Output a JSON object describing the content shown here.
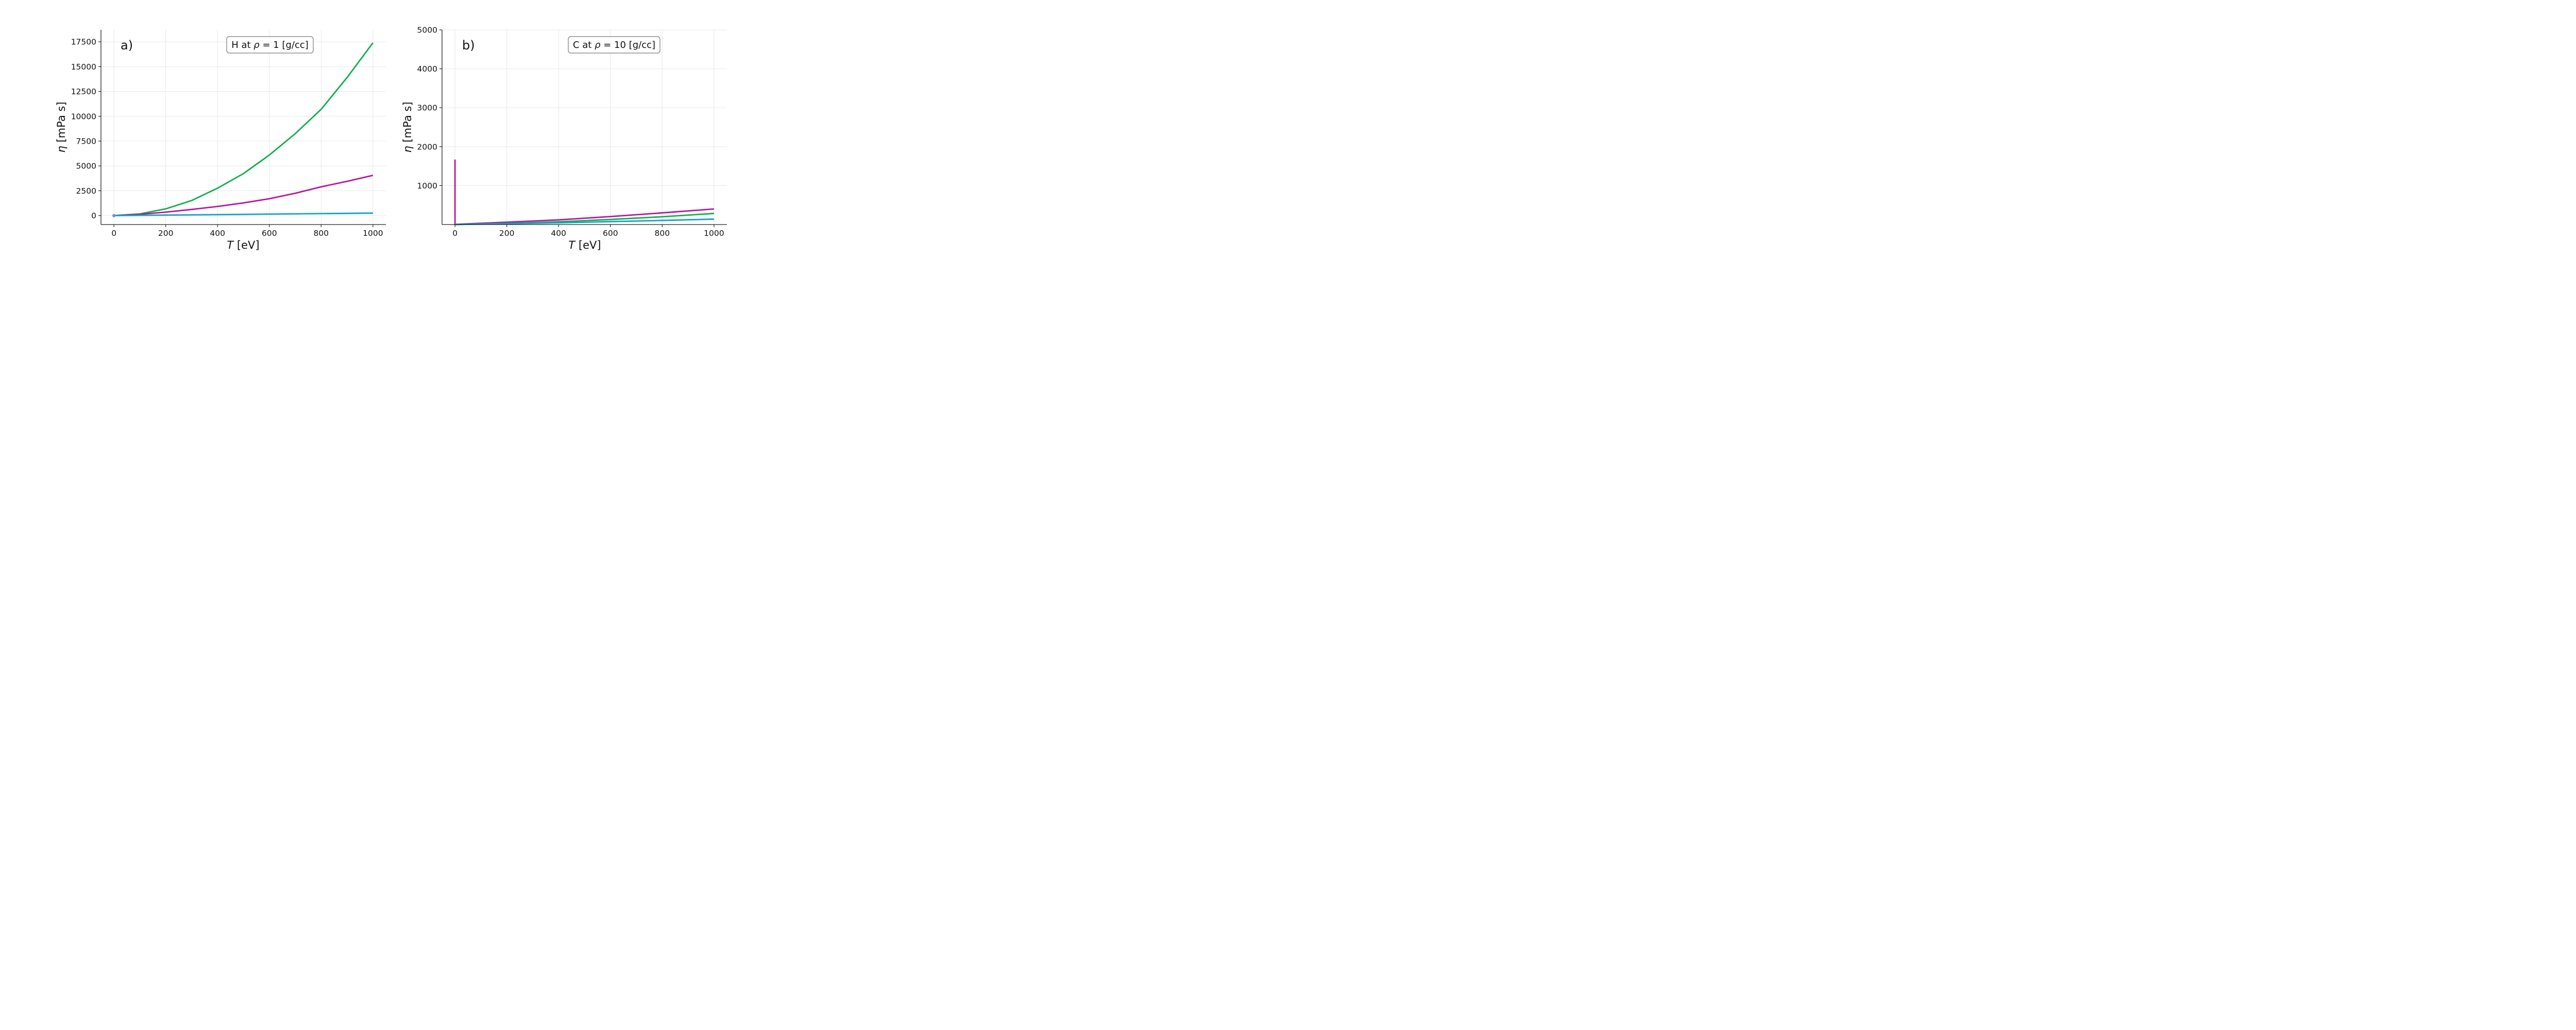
{
  "chart_data": [
    {
      "type": "line",
      "panel_letter": "a)",
      "annotation": {
        "element": "H",
        "mid": " at ",
        "rho": "ρ",
        "rest": " =  1 [g/cc]"
      },
      "xlabel": {
        "var": "T",
        "unit": " [eV]"
      },
      "ylabel": {
        "var": "η",
        "unit": " [mPa s]"
      },
      "xlim": [
        -50,
        1050
      ],
      "ylim": [
        -900,
        18700
      ],
      "xticks": [
        0,
        200,
        400,
        600,
        800,
        1000
      ],
      "xtick_labels": [
        "0",
        "200",
        "400",
        "600",
        "800",
        "1000"
      ],
      "yticks": [
        0,
        2500,
        5000,
        7500,
        10000,
        12500,
        15000,
        17500
      ],
      "ytick_labels": [
        "0",
        "2500",
        "5000",
        "7500",
        "10000",
        "12500",
        "15000",
        "17500"
      ],
      "grid": true,
      "series": [
        {
          "color": "#0fae4f",
          "x": [
            0,
            100,
            200,
            300,
            400,
            500,
            600,
            700,
            800,
            900,
            1000
          ],
          "y": [
            0,
            170,
            680,
            1520,
            2760,
            4230,
            6100,
            8250,
            10700,
            13900,
            17400
          ]
        },
        {
          "color": "#b8169e",
          "x": [
            0,
            100,
            200,
            300,
            400,
            500,
            600,
            700,
            800,
            900,
            1000
          ],
          "y": [
            0,
            130,
            350,
            620,
            920,
            1280,
            1700,
            2250,
            2900,
            3450,
            4050
          ]
        },
        {
          "color": "#14a3c4",
          "x": [
            0,
            1000
          ],
          "y": [
            0,
            250
          ]
        }
      ],
      "markers": [
        {
          "x": 0,
          "y": 0,
          "color": "#7d93bf"
        }
      ]
    },
    {
      "type": "line",
      "panel_letter": "b)",
      "annotation": {
        "element": "C",
        "mid": " at ",
        "rho": "ρ",
        "rest": " =  10 [g/cc]"
      },
      "xlabel": {
        "var": "T",
        "unit": " [eV]"
      },
      "ylabel": {
        "var": "η",
        "unit": " [mPa s]"
      },
      "xlim": [
        -50,
        1050
      ],
      "ylim": [
        0,
        5000
      ],
      "xticks": [
        0,
        200,
        400,
        600,
        800,
        1000
      ],
      "xtick_labels": [
        "0",
        "200",
        "400",
        "600",
        "800",
        "1000"
      ],
      "yticks": [
        1000,
        2000,
        3000,
        4000,
        5000
      ],
      "ytick_labels": [
        "1000",
        "2000",
        "3000",
        "4000",
        "5000"
      ],
      "grid": true,
      "series": [
        {
          "color": "#b8169e",
          "x": [
            0,
            0,
            0.5,
            200,
            400,
            600,
            800,
            1000
          ],
          "y": [
            1670,
            0,
            5,
            60,
            120,
            205,
            300,
            400
          ]
        },
        {
          "color": "#0fae4f",
          "x": [
            0,
            200,
            400,
            600,
            800,
            1000
          ],
          "y": [
            0,
            30,
            70,
            130,
            200,
            285
          ]
        },
        {
          "color": "#14a3c4",
          "x": [
            0,
            200,
            400,
            600,
            800,
            1000
          ],
          "y": [
            0,
            20,
            45,
            75,
            105,
            140
          ]
        }
      ],
      "markers": []
    }
  ]
}
